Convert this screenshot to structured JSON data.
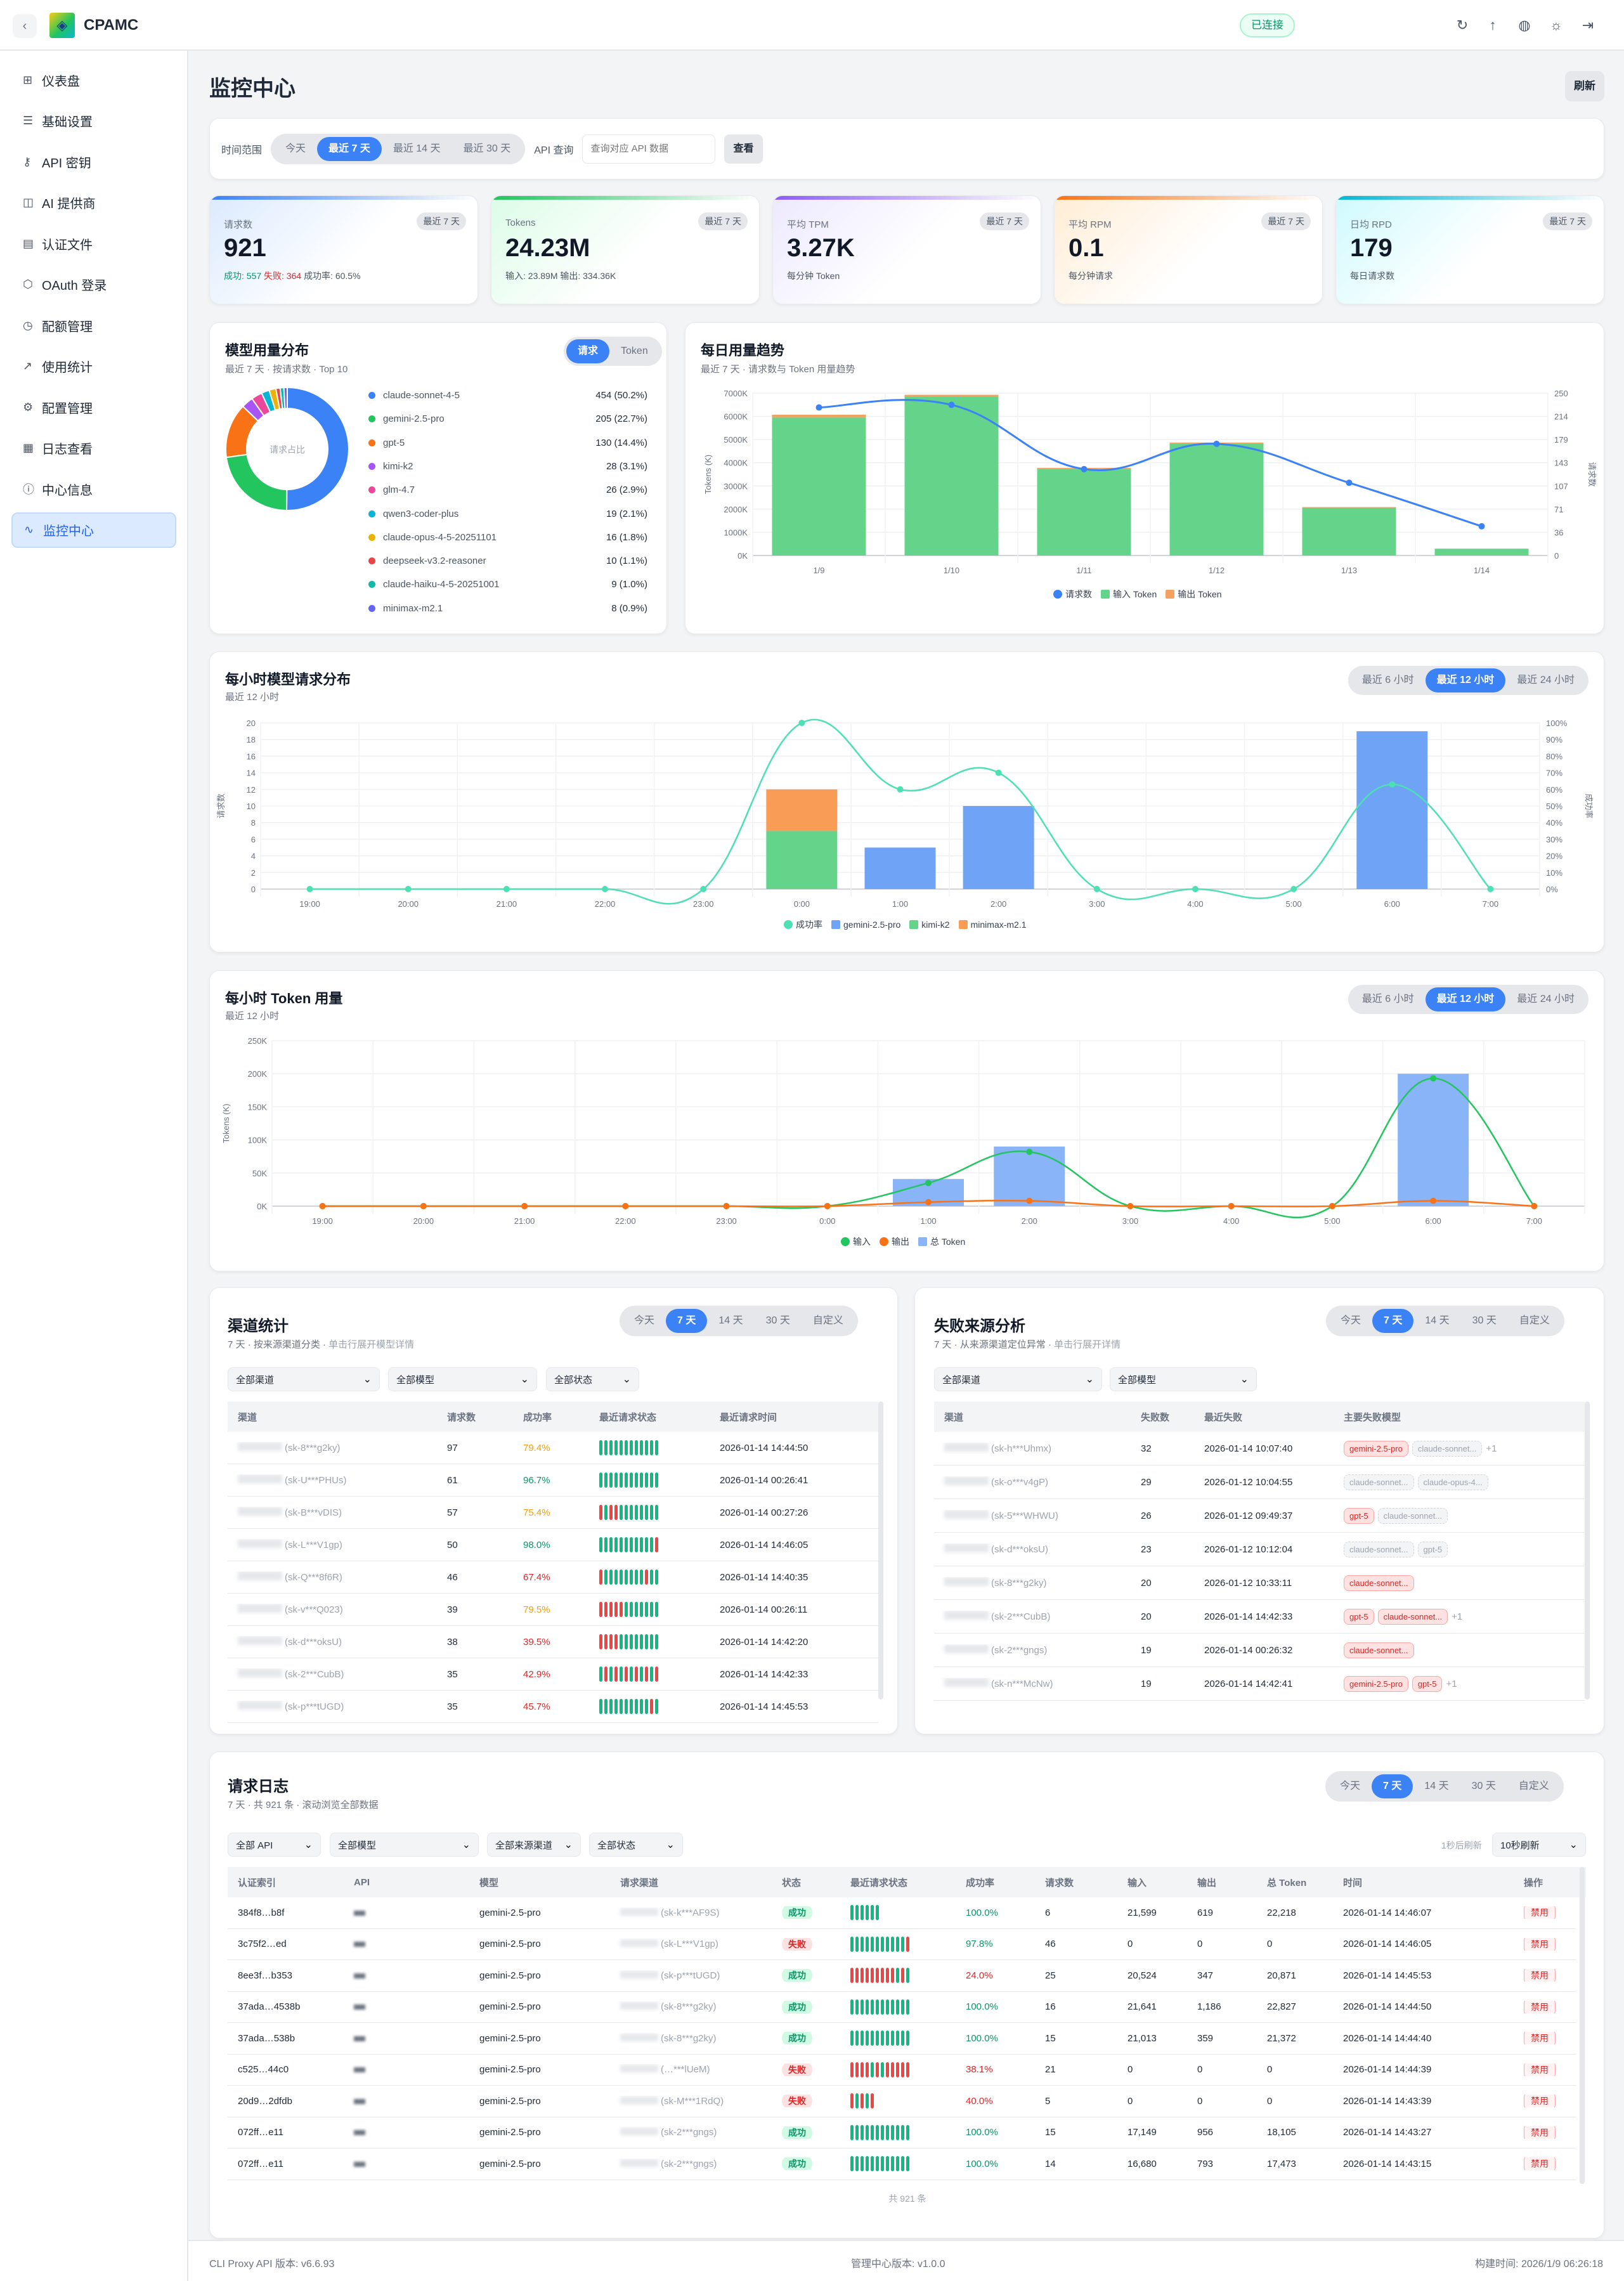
{
  "header": {
    "brand": "CPAMC",
    "status": "已连接",
    "icons": [
      "refresh-icon",
      "upload-icon",
      "globe-icon",
      "sun-icon",
      "logout-icon"
    ]
  },
  "sidebar": {
    "items": [
      {
        "label": "仪表盘",
        "icon": "⊞",
        "name": "dashboard"
      },
      {
        "label": "基础设置",
        "icon": "☰",
        "name": "basic-settings"
      },
      {
        "label": "API 密钥",
        "icon": "⚷",
        "name": "api-keys"
      },
      {
        "label": "AI 提供商",
        "icon": "◫",
        "name": "ai-providers"
      },
      {
        "label": "认证文件",
        "icon": "▤",
        "name": "auth-files"
      },
      {
        "label": "OAuth 登录",
        "icon": "⬡",
        "name": "oauth-login"
      },
      {
        "label": "配额管理",
        "icon": "◷",
        "name": "quota"
      },
      {
        "label": "使用统计",
        "icon": "↗",
        "name": "usage-stats"
      },
      {
        "label": "配置管理",
        "icon": "⚙",
        "name": "config"
      },
      {
        "label": "日志查看",
        "icon": "▦",
        "name": "logs"
      },
      {
        "label": "中心信息",
        "icon": "ⓘ",
        "name": "center-info"
      },
      {
        "label": "监控中心",
        "icon": "∿",
        "name": "monitor",
        "active": true
      }
    ]
  },
  "page": {
    "title": "监控中心",
    "refresh": "刷新"
  },
  "filter": {
    "range_label": "时间范围",
    "ranges": [
      "今天",
      "最近 7 天",
      "最近 14 天",
      "最近 30 天"
    ],
    "active": 1,
    "api_label": "API 查询",
    "api_placeholder": "查询对应 API 数据",
    "query_btn": "查看"
  },
  "stats": [
    {
      "label": "请求数",
      "badge": "最近 7 天",
      "value": "921",
      "success": "成功: 557",
      "fail": "失败: 364",
      "rate": "成功率: 60.5%",
      "color": "#3b82f6",
      "tint": "#dbeafe"
    },
    {
      "label": "Tokens",
      "badge": "最近 7 天",
      "value": "24.23M",
      "detail": "输入: 23.89M  输出: 334.36K",
      "color": "#22c55e",
      "tint": "#dcfce7"
    },
    {
      "label": "平均 TPM",
      "badge": "最近 7 天",
      "value": "3.27K",
      "detail": "每分钟 Token",
      "color": "#8b5cf6",
      "tint": "#ede9fe"
    },
    {
      "label": "平均 RPM",
      "badge": "最近 7 天",
      "value": "0.1",
      "detail": "每分钟请求",
      "color": "#f97316",
      "tint": "#ffedd5"
    },
    {
      "label": "日均 RPD",
      "badge": "最近 7 天",
      "value": "179",
      "detail": "每日请求数",
      "color": "#06b6d4",
      "tint": "#cffafe"
    }
  ],
  "model_panel": {
    "title": "模型用量分布",
    "subtitle": "最近 7 天 · 按请求数 · Top 10",
    "toggle": [
      "请求",
      "Token"
    ],
    "center_label": "请求占比"
  },
  "daily_panel": {
    "title": "每日用量趋势",
    "subtitle": "最近 7 天 · 请求数与 Token 用量趋势"
  },
  "hourly_req_panel": {
    "title": "每小时模型请求分布",
    "subtitle": "最近 12 小时",
    "ranges": [
      "最近 6 小时",
      "最近 12 小时",
      "最近 24 小时"
    ],
    "active": 1
  },
  "hourly_tok_panel": {
    "title": "每小时 Token 用量",
    "subtitle": "最近 12 小时",
    "ranges": [
      "最近 6 小时",
      "最近 12 小时",
      "最近 24 小时"
    ],
    "active": 1
  },
  "chart_data": [
    {
      "type": "pie",
      "labels": [
        "claude-sonnet-4-5",
        "gemini-2.5-pro",
        "gpt-5",
        "kimi-k2",
        "glm-4.7",
        "qwen3-coder-plus",
        "claude-opus-4-5-20251101",
        "deepseek-v3.2-reasoner",
        "claude-haiku-4-5-20251001",
        "minimax-m2.1"
      ],
      "values": [
        454,
        205,
        130,
        28,
        26,
        19,
        16,
        10,
        9,
        8
      ],
      "percents": [
        50.2,
        22.7,
        14.4,
        3.1,
        2.9,
        2.1,
        1.8,
        1.1,
        1.0,
        0.9
      ],
      "colors": [
        "#3b82f6",
        "#22c55e",
        "#f97316",
        "#a855f7",
        "#ec4899",
        "#06b6d4",
        "#eab308",
        "#ef4444",
        "#14b8a6",
        "#6366f1"
      ]
    },
    {
      "type": "bar",
      "categories": [
        "1/9",
        "1/10",
        "1/11",
        "1/12",
        "1/13",
        "1/14"
      ],
      "ylabel": "Tokens (K)",
      "y2label": "请求数",
      "ylim": [
        0,
        7000
      ],
      "y2lim": [
        0,
        250
      ],
      "series": [
        {
          "name": "输入 Token",
          "kind": "bar",
          "axis": "left",
          "color": "#63d48a",
          "values": [
            5950,
            6860,
            3720,
            4830,
            2060,
            280
          ]
        },
        {
          "name": "输出 Token",
          "kind": "bar",
          "axis": "left",
          "color": "#f4a261",
          "values": [
            120,
            70,
            60,
            40,
            30,
            20
          ]
        },
        {
          "name": "请求数",
          "kind": "line",
          "axis": "right",
          "color": "#3b82f6",
          "values": [
            228,
            232,
            133,
            172,
            112,
            45
          ]
        }
      ]
    },
    {
      "type": "bar",
      "categories": [
        "19:00",
        "20:00",
        "21:00",
        "22:00",
        "23:00",
        "0:00",
        "1:00",
        "2:00",
        "3:00",
        "4:00",
        "5:00",
        "6:00",
        "7:00"
      ],
      "ylabel": "请求数",
      "y2label": "成功率",
      "ylim": [
        0,
        20
      ],
      "y2lim": [
        0,
        100
      ],
      "series": [
        {
          "name": "成功率",
          "kind": "line",
          "axis": "right",
          "color": "#4de0b5",
          "values": [
            0,
            0,
            0,
            0,
            0,
            100,
            60,
            70,
            0,
            0,
            0,
            63,
            0
          ]
        },
        {
          "name": "gemini-2.5-pro",
          "kind": "bar",
          "axis": "left",
          "color": "#6fa3f5",
          "values": [
            0,
            0,
            0,
            0,
            0,
            0,
            5,
            10,
            0,
            0,
            0,
            19,
            0
          ]
        },
        {
          "name": "kimi-k2",
          "kind": "bar",
          "axis": "left",
          "color": "#63d48a",
          "values": [
            0,
            0,
            0,
            0,
            0,
            7,
            0,
            0,
            0,
            0,
            0,
            0,
            0
          ]
        },
        {
          "name": "minimax-m2.1",
          "kind": "bar",
          "axis": "left",
          "color": "#f89c56",
          "values": [
            0,
            0,
            0,
            0,
            0,
            5,
            0,
            0,
            0,
            0,
            0,
            0,
            0
          ]
        }
      ]
    },
    {
      "type": "bar",
      "categories": [
        "19:00",
        "20:00",
        "21:00",
        "22:00",
        "23:00",
        "0:00",
        "1:00",
        "2:00",
        "3:00",
        "4:00",
        "5:00",
        "6:00",
        "7:00"
      ],
      "ylabel": "Tokens (K)",
      "ylim": [
        0,
        250
      ],
      "series": [
        {
          "name": "输入",
          "kind": "line",
          "axis": "left",
          "color": "#22c55e",
          "values": [
            0,
            0,
            0,
            0,
            0,
            0,
            35,
            82,
            0,
            0,
            0,
            193,
            0
          ]
        },
        {
          "name": "输出",
          "kind": "line",
          "axis": "left",
          "color": "#f97316",
          "values": [
            0,
            0,
            0,
            0,
            0,
            0,
            6,
            8,
            0,
            0,
            0,
            8,
            0
          ]
        },
        {
          "name": "总 Token",
          "kind": "bar",
          "axis": "left",
          "color": "#8ab4f8",
          "values": [
            0,
            0,
            0,
            0,
            0,
            0,
            41,
            90,
            0,
            0,
            0,
            200,
            0
          ]
        }
      ]
    }
  ],
  "channel": {
    "title": "渠道统计",
    "subtitle": "7 天 · 按来源渠道分类 · ",
    "hint": "单击行展开模型详情",
    "ranges": [
      "今天",
      "7 天",
      "14 天",
      "30 天",
      "自定义"
    ],
    "active": 1,
    "filters": [
      "全部渠道",
      "全部模型",
      "全部状态"
    ],
    "columns": [
      "渠道",
      "请求数",
      "成功率",
      "最近请求状态",
      "最近请求时间"
    ],
    "rows": [
      [
        "(sk-8***g2ky)",
        "97",
        "79.4%",
        "gggggggggggg",
        "2026-01-14 14:44:50"
      ],
      [
        "(sk-U***PHUs)",
        "61",
        "96.7%",
        "gggggggggggg",
        "2026-01-14 00:26:41"
      ],
      [
        "(sk-B***vDIS)",
        "57",
        "75.4%",
        "rgrrgggggggg",
        "2026-01-14 00:27:26"
      ],
      [
        "(sk-L***V1gp)",
        "50",
        "98.0%",
        "gggggggggggr",
        "2026-01-14 14:46:05"
      ],
      [
        "(sk-Q***8f6R)",
        "46",
        "67.4%",
        "rggggggggrgg",
        "2026-01-14 14:40:35"
      ],
      [
        "(sk-v***Q023)",
        "39",
        "79.5%",
        "rrrrrggggggg",
        "2026-01-14 00:26:11"
      ],
      [
        "(sk-d***oksU)",
        "38",
        "39.5%",
        "rrrrgggggggg",
        "2026-01-14 14:42:20"
      ],
      [
        "(sk-2***CubB)",
        "35",
        "42.9%",
        "grgrgrgrgrgr",
        "2026-01-14 14:42:33"
      ],
      [
        "(sk-p***tUGD)",
        "35",
        "45.7%",
        "ggggggggggrg",
        "2026-01-14 14:45:53"
      ]
    ]
  },
  "failure": {
    "title": "失败来源分析",
    "subtitle": "7 天 · 从来源渠道定位异常 · ",
    "hint": "单击行展开详情",
    "ranges": [
      "今天",
      "7 天",
      "14 天",
      "30 天",
      "自定义"
    ],
    "active": 1,
    "filters": [
      "全部渠道",
      "全部模型"
    ],
    "columns": [
      "渠道",
      "失败数",
      "最近失败",
      "主要失败模型"
    ],
    "rows": [
      {
        "channel": "(sk-h***Uhmx)",
        "count": "32",
        "time": "2026-01-14 10:07:40",
        "tags": [
          [
            "gemini-2.5-pro",
            "red"
          ],
          [
            "claude-sonnet...",
            "gray"
          ]
        ],
        "more": "+1"
      },
      {
        "channel": "(sk-o***v4gP)",
        "count": "29",
        "time": "2026-01-12 10:04:55",
        "tags": [
          [
            "claude-sonnet...",
            "gray"
          ],
          [
            "claude-opus-4...",
            "gray"
          ]
        ],
        "more": ""
      },
      {
        "channel": "(sk-5***WHWU)",
        "count": "26",
        "time": "2026-01-12 09:49:37",
        "tags": [
          [
            "gpt-5",
            "red"
          ],
          [
            "claude-sonnet...",
            "gray"
          ]
        ],
        "more": ""
      },
      {
        "channel": "(sk-d***oksU)",
        "count": "23",
        "time": "2026-01-12 10:12:04",
        "tags": [
          [
            "claude-sonnet...",
            "gray"
          ],
          [
            "gpt-5",
            "gray"
          ]
        ],
        "more": ""
      },
      {
        "channel": "(sk-8***g2ky)",
        "count": "20",
        "time": "2026-01-12 10:33:11",
        "tags": [
          [
            "claude-sonnet...",
            "red"
          ]
        ],
        "more": ""
      },
      {
        "channel": "(sk-2***CubB)",
        "count": "20",
        "time": "2026-01-14 14:42:33",
        "tags": [
          [
            "gpt-5",
            "red"
          ],
          [
            "claude-sonnet...",
            "red"
          ]
        ],
        "more": "+1"
      },
      {
        "channel": "(sk-2***gngs)",
        "count": "19",
        "time": "2026-01-14 00:26:32",
        "tags": [
          [
            "claude-sonnet...",
            "red"
          ]
        ],
        "more": ""
      },
      {
        "channel": "(sk-n***McNw)",
        "count": "19",
        "time": "2026-01-14 14:42:41",
        "tags": [
          [
            "gemini-2.5-pro",
            "red"
          ],
          [
            "gpt-5",
            "red"
          ]
        ],
        "more": "+1"
      }
    ]
  },
  "log": {
    "title": "请求日志",
    "subtitle": "7 天 · 共 921 条 · 滚动浏览全部数据",
    "ranges": [
      "今天",
      "7 天",
      "14 天",
      "30 天",
      "自定义"
    ],
    "active": 1,
    "filters": [
      "全部 API",
      "全部模型",
      "全部来源渠道",
      "全部状态"
    ],
    "countdown": "1秒后刷新",
    "refresh_select": "10秒刷新",
    "columns": [
      "认证索引",
      "API",
      "模型",
      "请求渠道",
      "状态",
      "最近请求状态",
      "成功率",
      "请求数",
      "输入",
      "输出",
      "总 Token",
      "时间",
      "操作"
    ],
    "rows": [
      [
        "384f8…b8f",
        "",
        "gemini-2.5-pro",
        "(sk-k***AF9S)",
        "成功",
        "gggggg",
        "100.0%",
        "6",
        "21,599",
        "619",
        "22,218",
        "2026-01-14 14:46:07",
        "禁用"
      ],
      [
        "3c75f2…ed",
        "",
        "gemini-2.5-pro",
        "(sk-L***V1gp)",
        "失败",
        "gggggggggggr",
        "97.8%",
        "46",
        "0",
        "0",
        "0",
        "2026-01-14 14:46:05",
        "禁用"
      ],
      [
        "8ee3f…b353",
        "",
        "gemini-2.5-pro",
        "(sk-p***tUGD)",
        "成功",
        "rrrrrrrrrgrg",
        "24.0%",
        "25",
        "20,524",
        "347",
        "20,871",
        "2026-01-14 14:45:53",
        "禁用"
      ],
      [
        "37ada…4538b",
        "",
        "gemini-2.5-pro",
        "(sk-8***g2ky)",
        "成功",
        "gggggggggggg",
        "100.0%",
        "16",
        "21,641",
        "1,186",
        "22,827",
        "2026-01-14 14:44:50",
        "禁用"
      ],
      [
        "37ada…538b",
        "",
        "gemini-2.5-pro",
        "(sk-8***g2ky)",
        "成功",
        "gggggggggggg",
        "100.0%",
        "15",
        "21,013",
        "359",
        "21,372",
        "2026-01-14 14:44:40",
        "禁用"
      ],
      [
        "c525…44c0",
        "",
        "gemini-2.5-pro",
        "(…***lUeM)",
        "失败",
        "rrrrgrgrrrrr",
        "38.1%",
        "21",
        "0",
        "0",
        "0",
        "2026-01-14 14:44:39",
        "禁用"
      ],
      [
        "20d9…2dfdb",
        "",
        "gemini-2.5-pro",
        "(sk-M***1RdQ)",
        "失败",
        "rgrgr",
        "40.0%",
        "5",
        "0",
        "0",
        "0",
        "2026-01-14 14:43:39",
        "禁用"
      ],
      [
        "072ff…e11",
        "",
        "gemini-2.5-pro",
        "(sk-2***gngs)",
        "成功",
        "gggggggggggg",
        "100.0%",
        "15",
        "17,149",
        "956",
        "18,105",
        "2026-01-14 14:43:27",
        "禁用"
      ],
      [
        "072ff…e11",
        "",
        "gemini-2.5-pro",
        "(sk-2***gngs)",
        "成功",
        "gggggggggggg",
        "100.0%",
        "14",
        "16,680",
        "793",
        "17,473",
        "2026-01-14 14:43:15",
        "禁用"
      ]
    ],
    "total": "共 921 条"
  },
  "footer": {
    "api_version": "CLI Proxy API 版本: v6.6.93",
    "ui_version": "管理中心版本: v1.0.0",
    "build_time": "构建时间: 2026/1/9 06:26:18"
  }
}
